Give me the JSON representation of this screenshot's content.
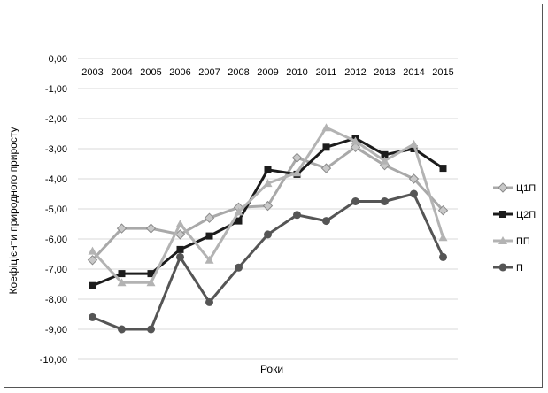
{
  "chart_data": {
    "type": "line",
    "title": "",
    "xlabel": "Роки",
    "ylabel": "Коефіцієнти природного приросту",
    "x_position": "top",
    "ylim": [
      -10,
      0
    ],
    "yticks": [
      "0,00",
      "-1,00",
      "-2,00",
      "-3,00",
      "-4,00",
      "-5,00",
      "-6,00",
      "-7,00",
      "-8,00",
      "-9,00",
      "-10,00"
    ],
    "categories": [
      "2003",
      "2004",
      "2005",
      "2006",
      "2007",
      "2008",
      "2009",
      "2010",
      "2011",
      "2012",
      "2013",
      "2014",
      "2015"
    ],
    "grid": true,
    "legend_position": "right",
    "series": [
      {
        "name": "Ц1П",
        "color": "#a9a9a9",
        "marker": "diamond",
        "values": [
          -6.7,
          -5.65,
          -5.65,
          -5.85,
          -5.3,
          -4.95,
          -4.9,
          -3.3,
          -3.65,
          -2.95,
          -3.55,
          -4.0,
          -5.05
        ]
      },
      {
        "name": "Ц2П",
        "color": "#1c1c1c",
        "marker": "square",
        "values": [
          -7.55,
          -7.15,
          -7.15,
          -6.35,
          -5.9,
          -5.4,
          -3.7,
          -3.85,
          -2.95,
          -2.65,
          -3.2,
          -3.0,
          -3.65
        ]
      },
      {
        "name": "ПП",
        "color": "#b3b3b3",
        "marker": "triangle",
        "values": [
          -6.4,
          -7.45,
          -7.45,
          -5.5,
          -6.7,
          -5.1,
          -4.15,
          -3.8,
          -2.3,
          -2.75,
          -3.4,
          -2.85,
          -5.95
        ]
      },
      {
        "name": "П",
        "color": "#555555",
        "marker": "circle",
        "values": [
          -8.6,
          -9.0,
          -9.0,
          -6.6,
          -8.1,
          -6.95,
          -5.85,
          -5.2,
          -5.4,
          -4.75,
          -4.75,
          -4.5,
          -6.6
        ]
      }
    ]
  }
}
